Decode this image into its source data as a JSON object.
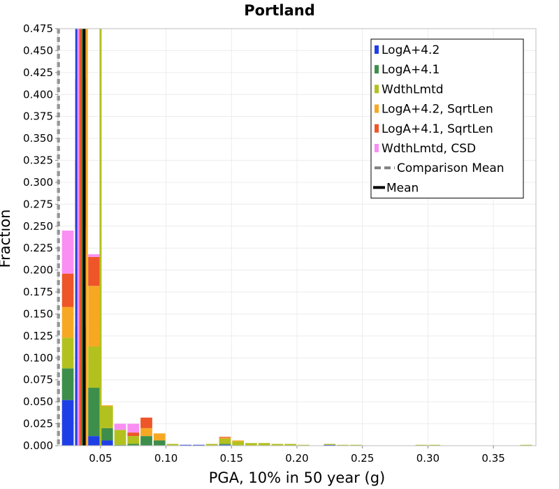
{
  "chart_data": {
    "type": "bar",
    "stacked": true,
    "title": "Portland",
    "xlabel": "PGA, 10% in 50 year (g)",
    "ylabel": "Fraction",
    "xlim": [
      0.0175,
      0.3825
    ],
    "ylim": [
      0,
      0.475
    ],
    "x_ticks": [
      "0.05",
      "0.10",
      "0.15",
      "0.20",
      "0.25",
      "0.30",
      "0.35"
    ],
    "x_tick_values": [
      0.05,
      0.1,
      0.15,
      0.2,
      0.25,
      0.3,
      0.35
    ],
    "y_ticks": [
      "0.000",
      "0.025",
      "0.050",
      "0.075",
      "0.100",
      "0.125",
      "0.150",
      "0.175",
      "0.200",
      "0.225",
      "0.250",
      "0.275",
      "0.300",
      "0.325",
      "0.350",
      "0.375",
      "0.400",
      "0.425",
      "0.450",
      "0.475"
    ],
    "y_tick_values": [
      0,
      0.025,
      0.05,
      0.075,
      0.1,
      0.125,
      0.15,
      0.175,
      0.2,
      0.225,
      0.25,
      0.275,
      0.3,
      0.325,
      0.35,
      0.375,
      0.4,
      0.425,
      0.45,
      0.475
    ],
    "grid": true,
    "legend_position": "top-right",
    "bin_width": 0.01,
    "bin_centers": [
      0.025,
      0.035,
      0.045,
      0.055,
      0.065,
      0.075,
      0.085,
      0.095,
      0.105,
      0.115,
      0.125,
      0.135,
      0.145,
      0.155,
      0.165,
      0.175,
      0.185,
      0.195,
      0.205,
      0.215,
      0.225,
      0.235,
      0.245,
      0.255,
      0.265,
      0.275,
      0.285,
      0.295,
      0.305,
      0.315,
      0.325,
      0.335,
      0.345,
      0.355,
      0.365,
      0.375
    ],
    "series": [
      {
        "name": "LogA+4.2",
        "color": "#1f3fe6",
        "values": [
          0.052,
          0.095,
          0.011,
          0.006,
          0,
          0,
          0,
          0,
          0,
          0.001,
          0.001,
          0,
          0.001,
          0,
          0,
          0,
          0,
          0,
          0,
          0,
          0.001,
          0,
          0,
          0,
          0,
          0,
          0,
          0,
          0,
          0,
          0,
          0,
          0,
          0,
          0,
          0
        ]
      },
      {
        "name": "LogA+4.1",
        "color": "#3e8e4b",
        "values": [
          0.036,
          0.041,
          0.055,
          0.014,
          0.001,
          0.002,
          0.011,
          0.006,
          0,
          0,
          0,
          0,
          0.001,
          0,
          0,
          0,
          0,
          0,
          0,
          0,
          0,
          0,
          0,
          0,
          0,
          0,
          0,
          0,
          0,
          0,
          0,
          0,
          0,
          0,
          0,
          0
        ]
      },
      {
        "name": "WdthLmtd",
        "color": "#b2c11e",
        "values": [
          0.035,
          0.056,
          0.047,
          0.025,
          0.017,
          0.009,
          0,
          0,
          0.002,
          0,
          0,
          0.002,
          0.006,
          0.005,
          0.003,
          0.003,
          0.002,
          0.002,
          0.001,
          0,
          0.001,
          0.001,
          0.001,
          0,
          0,
          0,
          0,
          0.001,
          0.001,
          0,
          0,
          0,
          0,
          0,
          0,
          0.001
        ]
      },
      {
        "name": "LogA+4.2, SqrtLen",
        "color": "#f7a823",
        "values": [
          0.035,
          0.056,
          0.069,
          0.001,
          0,
          0,
          0.009,
          0.008,
          0,
          0,
          0,
          0,
          0.001,
          0.001,
          0,
          0,
          0,
          0,
          0,
          0,
          0,
          0,
          0,
          0,
          0,
          0,
          0,
          0,
          0,
          0,
          0,
          0,
          0,
          0,
          0,
          0
        ]
      },
      {
        "name": "LogA+4.1, SqrtLen",
        "color": "#ee5528",
        "values": [
          0.038,
          0.077,
          0.033,
          0,
          0,
          0.004,
          0.012,
          0,
          0,
          0,
          0,
          0,
          0.001,
          0,
          0,
          0,
          0,
          0,
          0,
          0,
          0,
          0,
          0,
          0,
          0,
          0,
          0,
          0,
          0,
          0,
          0,
          0,
          0,
          0,
          0,
          0
        ]
      },
      {
        "name": "WdthLmtd, CSD",
        "color": "#f98ef3",
        "values": [
          0.049,
          0.093,
          0.003,
          0,
          0.007,
          0.01,
          0,
          0,
          0,
          0,
          0,
          0,
          0,
          0,
          0,
          0,
          0,
          0,
          0,
          0,
          0,
          0,
          0,
          0,
          0,
          0,
          0,
          0,
          0,
          0,
          0,
          0,
          0,
          0,
          0,
          0
        ]
      }
    ],
    "vertical_lines": [
      {
        "name": "LogA+4.2 mean",
        "x": 0.0315,
        "color": "#1f3fe6",
        "width": 3,
        "dash": false
      },
      {
        "name": "LogA+4.1 mean",
        "x": 0.036,
        "color": "#3e8e4b",
        "width": 3,
        "dash": false
      },
      {
        "name": "WdthLmtd mean",
        "x": 0.05,
        "color": "#b2c11e",
        "width": 3,
        "dash": false
      },
      {
        "name": "LogA+4.2, SqrtLen mean",
        "x": 0.0395,
        "color": "#f7a823",
        "width": 3,
        "dash": false
      },
      {
        "name": "LogA+4.1, SqrtLen mean",
        "x": 0.0345,
        "color": "#ee5528",
        "width": 3,
        "dash": false
      },
      {
        "name": "WdthLmtd, CSD mean",
        "x": 0.033,
        "color": "#f98ef3",
        "width": 3,
        "dash": false
      },
      {
        "name": "Comparison Mean",
        "x": 0.0178,
        "color": "#808080",
        "width": 4,
        "dash": true
      },
      {
        "name": "Mean",
        "x": 0.0375,
        "color": "#000000",
        "width": 4,
        "dash": false
      }
    ],
    "legend": [
      {
        "label": "LogA+4.2",
        "color": "#1f3fe6",
        "kind": "bar"
      },
      {
        "label": "LogA+4.1",
        "color": "#3e8e4b",
        "kind": "bar"
      },
      {
        "label": "WdthLmtd",
        "color": "#b2c11e",
        "kind": "bar"
      },
      {
        "label": "LogA+4.2, SqrtLen",
        "color": "#f7a823",
        "kind": "bar"
      },
      {
        "label": "LogA+4.1, SqrtLen",
        "color": "#ee5528",
        "kind": "bar"
      },
      {
        "label": "WdthLmtd, CSD",
        "color": "#f98ef3",
        "kind": "bar"
      },
      {
        "label": "Comparison Mean",
        "color": "#808080",
        "kind": "dash"
      },
      {
        "label": "Mean",
        "color": "#000000",
        "kind": "line"
      }
    ]
  }
}
